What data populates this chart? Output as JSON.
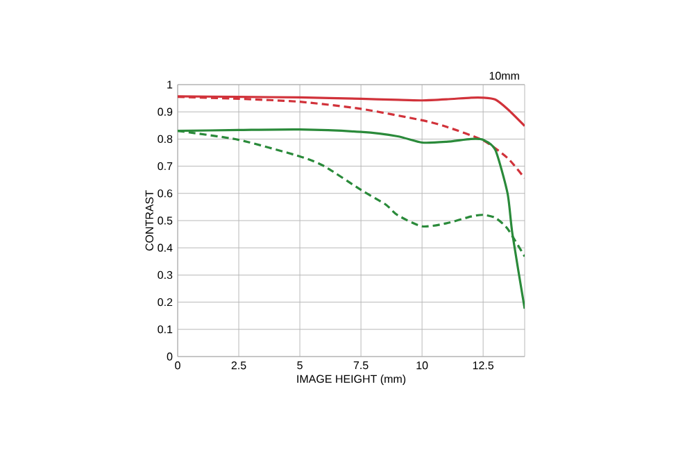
{
  "chart_data": {
    "type": "line",
    "xlabel": "IMAGE HEIGHT (mm)",
    "ylabel": "CONTRAST",
    "annotations": [
      "10mm"
    ],
    "xlim": [
      0,
      14.2
    ],
    "ylim": [
      0,
      1
    ],
    "xticks": [
      0,
      2.5,
      5,
      7.5,
      10,
      12.5
    ],
    "yticks": [
      0,
      0.1,
      0.2,
      0.3,
      0.4,
      0.5,
      0.6,
      0.7,
      0.8,
      0.9,
      1
    ],
    "grid": true,
    "marker": "none",
    "series": [
      {
        "color": "#d1323a",
        "line_style": "solid",
        "x": [
          0,
          2.5,
          5,
          7.5,
          9,
          10,
          11,
          12,
          12.5,
          13,
          13.5,
          14.2
        ],
        "values": [
          0.957,
          0.955,
          0.953,
          0.948,
          0.944,
          0.942,
          0.946,
          0.952,
          0.952,
          0.945,
          0.91,
          0.848
        ]
      },
      {
        "color": "#d1323a",
        "line_style": "dashed",
        "x": [
          0,
          2.5,
          5,
          7.5,
          10,
          11,
          12.5,
          13.5,
          14.2
        ],
        "values": [
          0.955,
          0.948,
          0.937,
          0.911,
          0.869,
          0.845,
          0.795,
          0.73,
          0.656
        ]
      },
      {
        "color": "#2a8a3a",
        "line_style": "solid",
        "x": [
          0,
          2.5,
          5,
          7.5,
          9,
          10,
          11,
          12,
          12.5,
          13,
          13.5,
          13.7,
          14.2
        ],
        "values": [
          0.83,
          0.833,
          0.835,
          0.826,
          0.81,
          0.787,
          0.79,
          0.8,
          0.797,
          0.76,
          0.6,
          0.45,
          0.176
        ]
      },
      {
        "color": "#2a8a3a",
        "line_style": "dashed",
        "x": [
          0,
          2.5,
          5,
          6,
          7.5,
          8.5,
          9,
          10,
          11,
          12,
          12.5,
          13,
          13.5,
          14.2
        ],
        "values": [
          0.83,
          0.797,
          0.736,
          0.7,
          0.613,
          0.56,
          0.52,
          0.479,
          0.49,
          0.515,
          0.521,
          0.51,
          0.47,
          0.368
        ]
      }
    ]
  }
}
